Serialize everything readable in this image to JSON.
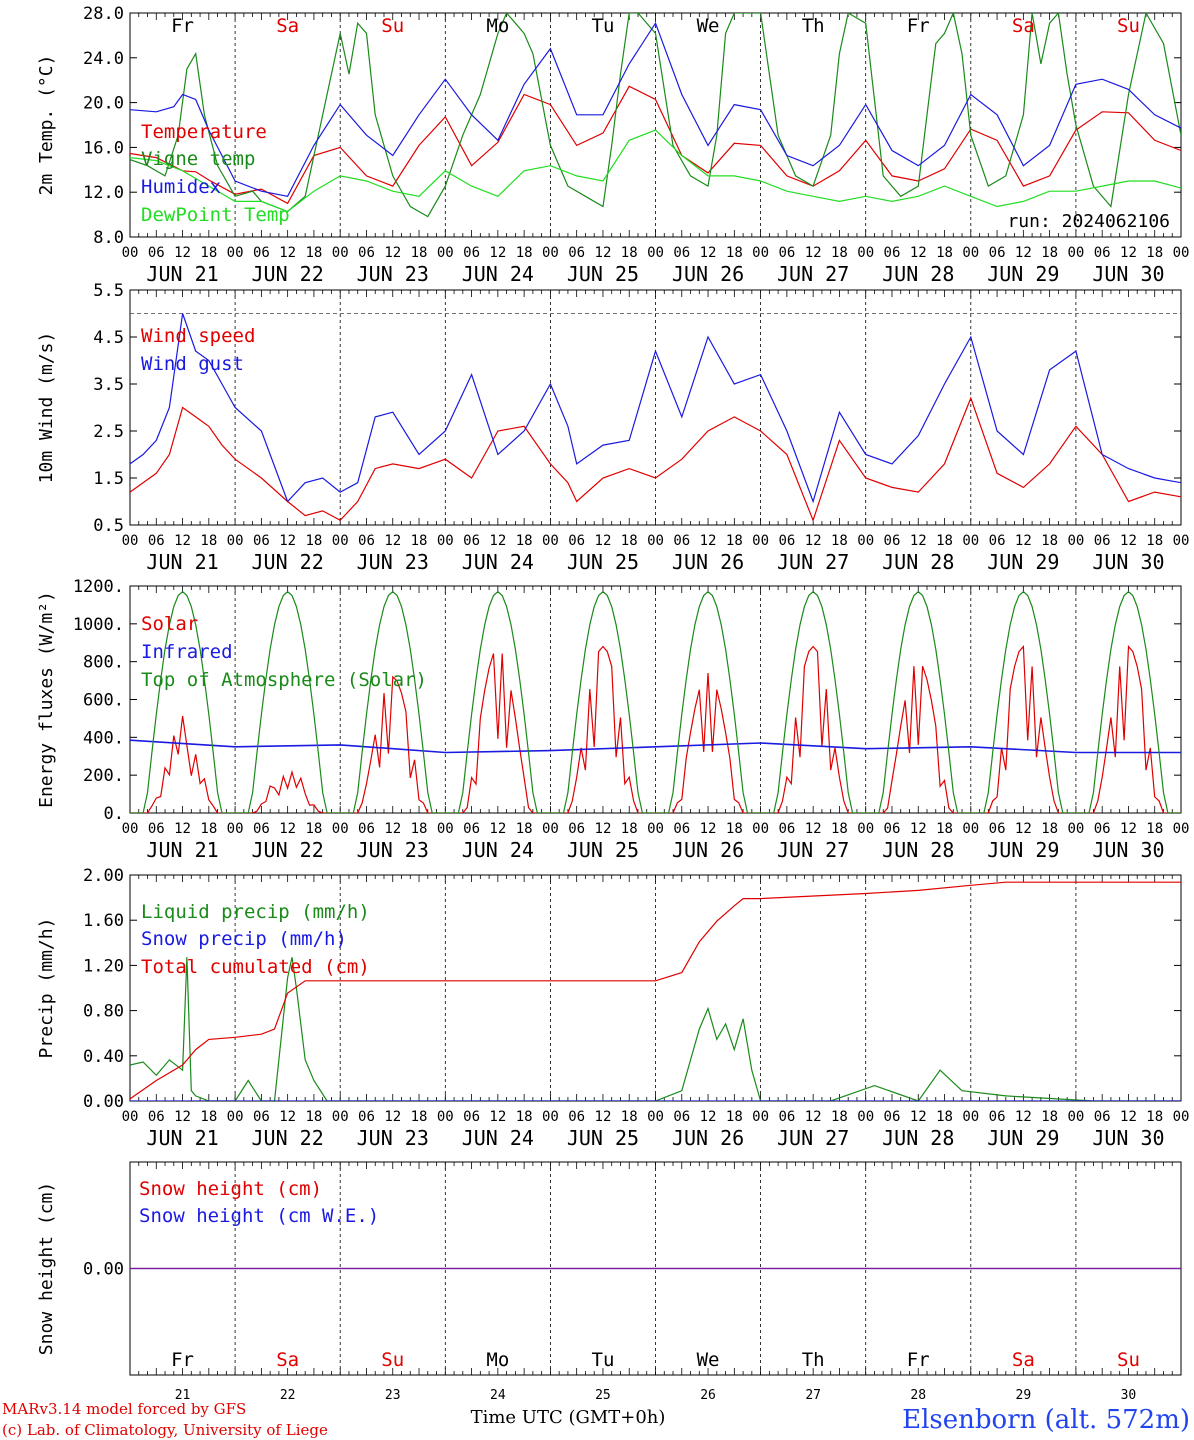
{
  "footer": {
    "credit_line1": "MARv3.14 model forced by GFS",
    "credit_line2": "(c) Lab. of Climatology, University of Liege",
    "time_label": "Time UTC (GMT+0h)",
    "station": "Elsenborn (alt. 572m)"
  },
  "colors": {
    "red": "#e00000",
    "green": "#1a8a1a",
    "blue": "#1a1ae0",
    "lightgreen": "#22dd22",
    "purple": "#7a1aa0",
    "weekend": "#e00000",
    "weekday": "#000000"
  },
  "axis": {
    "hour_ticks": [
      "00",
      "06",
      "12",
      "18"
    ],
    "end_tick": "00",
    "dates": [
      "JUN 21",
      "JUN 22",
      "JUN 23",
      "JUN 24",
      "JUN 25",
      "JUN 26",
      "JUN 27",
      "JUN 28",
      "JUN 29",
      "JUN 30"
    ],
    "weekdays": [
      "Fr",
      "Sa",
      "Su",
      "Mo",
      "Tu",
      "We",
      "Th",
      "Fr",
      "Sa",
      "Su"
    ],
    "weekend_flags": [
      false,
      true,
      true,
      false,
      false,
      false,
      false,
      false,
      true,
      true
    ],
    "day_numbers": [
      "21",
      "22",
      "23",
      "24",
      "25",
      "26",
      "27",
      "28",
      "29",
      "30"
    ]
  },
  "chart_data": [
    {
      "type": "line",
      "id": "temp",
      "ylabel": "2m Temp. (°C)",
      "ylim": [
        8,
        30
      ],
      "yticks": [
        "8.0",
        "12.0",
        "16.0",
        "20.0",
        "24.0",
        "28.0"
      ],
      "run_label": "run: 2024062106",
      "series": [
        {
          "name": "Temperature",
          "color": "#e00000",
          "x": [
            0,
            6,
            12,
            15,
            18,
            24,
            30,
            36,
            42,
            48,
            54,
            60,
            66,
            72,
            78,
            84,
            90,
            96,
            102,
            108,
            114,
            120,
            126,
            132,
            138,
            144,
            150,
            156,
            162,
            168,
            174,
            180,
            186,
            192,
            198,
            204,
            210,
            216,
            222,
            228,
            234,
            240
          ],
          "y": [
            16.2,
            15.8,
            14.5,
            14.4,
            13.6,
            12.2,
            12.7,
            11.3,
            16.0,
            16.8,
            14.0,
            13.0,
            17.0,
            19.8,
            15.0,
            17.3,
            22.0,
            21.0,
            17.0,
            18.2,
            22.8,
            21.5,
            16.0,
            14.3,
            17.2,
            17.0,
            14.0,
            13.0,
            14.5,
            17.5,
            14.0,
            13.5,
            14.7,
            18.6,
            17.5,
            13.0,
            14.0,
            18.5,
            20.3,
            20.2,
            17.5,
            16.5
          ]
        },
        {
          "name": "Vigne temp",
          "color": "#1a8a1a",
          "x": [
            0,
            4,
            8,
            11,
            13,
            15,
            17,
            20,
            24,
            28,
            30,
            36,
            40,
            44,
            48,
            50,
            52,
            54,
            56,
            60,
            64,
            68,
            72,
            76,
            80,
            84,
            86,
            88,
            90,
            92,
            96,
            100,
            104,
            108,
            110,
            112,
            114,
            116,
            120,
            124,
            128,
            132,
            134,
            136,
            138,
            140,
            144,
            148,
            152,
            156,
            160,
            162,
            164,
            168,
            172,
            176,
            180,
            182,
            184,
            186,
            188,
            190,
            192,
            196,
            200,
            204,
            206,
            208,
            210,
            212,
            214,
            216,
            220,
            224,
            228,
            232,
            236,
            240
          ],
          "y": [
            15.6,
            15.0,
            14.0,
            18.0,
            24.5,
            26.0,
            20.0,
            15.0,
            12.0,
            12.5,
            11.5,
            10.5,
            12.0,
            20.0,
            28.0,
            24.0,
            29.0,
            28.0,
            20.0,
            14.0,
            11.0,
            10.0,
            13.0,
            18.0,
            22.0,
            28.0,
            30.0,
            29.0,
            28.0,
            26.0,
            17.0,
            13.0,
            12.0,
            11.0,
            17.0,
            24.0,
            30.0,
            30.0,
            28.0,
            17.0,
            14.0,
            13.0,
            18.0,
            28.0,
            30.0,
            30.0,
            30.0,
            18.0,
            14.0,
            13.0,
            18.0,
            26.0,
            30.0,
            29.0,
            14.0,
            12.0,
            13.0,
            20.0,
            27.0,
            28.0,
            30.0,
            26.0,
            18.0,
            13.0,
            14.0,
            20.0,
            30.0,
            25.0,
            29.0,
            30.0,
            24.0,
            19.0,
            13.0,
            11.0,
            22.0,
            30.0,
            27.0,
            18.0
          ]
        },
        {
          "name": "Humidex",
          "color": "#1a1ae0",
          "x": [
            0,
            6,
            10,
            12,
            15,
            18,
            24,
            30,
            36,
            42,
            48,
            54,
            60,
            66,
            72,
            78,
            84,
            90,
            96,
            102,
            108,
            114,
            120,
            126,
            132,
            138,
            144,
            150,
            156,
            162,
            168,
            174,
            180,
            186,
            192,
            198,
            204,
            210,
            216,
            222,
            228,
            234,
            240
          ],
          "y": [
            20.5,
            20.3,
            20.8,
            22.0,
            21.5,
            18.5,
            13.5,
            12.5,
            12.0,
            17.0,
            21.0,
            18.0,
            16.0,
            20.0,
            23.5,
            20.0,
            17.5,
            23.0,
            26.5,
            20.0,
            20.0,
            25.0,
            29.0,
            22.0,
            17.0,
            21.0,
            20.5,
            16.0,
            15.0,
            17.0,
            21.0,
            16.5,
            15.0,
            17.0,
            22.0,
            20.0,
            15.0,
            17.0,
            23.0,
            23.5,
            22.5,
            20.0,
            18.7
          ]
        },
        {
          "name": "DewPoint Temp",
          "color": "#22dd22",
          "x": [
            0,
            6,
            12,
            18,
            24,
            30,
            36,
            42,
            48,
            54,
            60,
            66,
            72,
            78,
            84,
            90,
            96,
            102,
            108,
            114,
            120,
            126,
            132,
            138,
            144,
            150,
            156,
            162,
            168,
            174,
            180,
            186,
            192,
            198,
            204,
            210,
            216,
            222,
            228,
            234,
            240
          ],
          "y": [
            15.8,
            15.5,
            14.5,
            13.0,
            11.5,
            11.5,
            10.5,
            12.5,
            14.0,
            13.5,
            12.5,
            12.0,
            14.5,
            13.0,
            12.0,
            14.5,
            15.0,
            14.0,
            13.5,
            17.5,
            18.5,
            16.0,
            14.0,
            14.0,
            13.5,
            12.5,
            12.0,
            11.5,
            12.0,
            11.5,
            12.0,
            13.0,
            12.0,
            11.0,
            11.5,
            12.5,
            12.5,
            13.0,
            13.5,
            13.5,
            12.8
          ]
        }
      ]
    },
    {
      "type": "line",
      "id": "wind",
      "ylabel": "10m Wind (m/s)",
      "ylim": [
        0.5,
        5.5
      ],
      "yticks": [
        "0.5",
        "1.5",
        "2.5",
        "3.5",
        "4.5",
        "5.5"
      ],
      "reference_line": 5.0,
      "series": [
        {
          "name": "Wind speed",
          "color": "#e00000",
          "x": [
            0,
            3,
            6,
            9,
            12,
            15,
            18,
            21,
            24,
            30,
            36,
            40,
            44,
            48,
            52,
            56,
            60,
            66,
            72,
            78,
            84,
            90,
            96,
            100,
            102,
            108,
            114,
            120,
            126,
            132,
            138,
            144,
            150,
            156,
            162,
            168,
            174,
            180,
            186,
            192,
            198,
            204,
            210,
            216,
            222,
            228,
            234,
            240
          ],
          "y": [
            1.2,
            1.4,
            1.6,
            2.0,
            3.0,
            2.8,
            2.6,
            2.2,
            1.9,
            1.5,
            1.0,
            0.7,
            0.8,
            0.6,
            1.0,
            1.7,
            1.8,
            1.7,
            1.9,
            1.5,
            2.5,
            2.6,
            1.8,
            1.4,
            1.0,
            1.5,
            1.7,
            1.5,
            1.9,
            2.5,
            2.8,
            2.5,
            2.0,
            0.6,
            2.3,
            1.5,
            1.3,
            1.2,
            1.8,
            3.2,
            1.6,
            1.3,
            1.8,
            2.6,
            2.0,
            1.0,
            1.2,
            1.1
          ]
        },
        {
          "name": "Wind gust",
          "color": "#1a1ae0",
          "x": [
            0,
            3,
            6,
            9,
            12,
            15,
            18,
            21,
            24,
            30,
            36,
            40,
            44,
            48,
            52,
            56,
            60,
            66,
            72,
            78,
            84,
            90,
            96,
            100,
            102,
            108,
            114,
            120,
            126,
            132,
            138,
            144,
            150,
            156,
            162,
            168,
            174,
            180,
            186,
            192,
            198,
            204,
            210,
            216,
            222,
            228,
            234,
            240
          ],
          "y": [
            1.8,
            2.0,
            2.3,
            3.0,
            5.0,
            4.2,
            4.0,
            3.5,
            3.0,
            2.5,
            1.0,
            1.4,
            1.5,
            1.2,
            1.4,
            2.8,
            2.9,
            2.0,
            2.5,
            3.7,
            2.0,
            2.5,
            3.5,
            2.6,
            1.8,
            2.2,
            2.3,
            4.2,
            2.8,
            4.5,
            3.5,
            3.7,
            2.5,
            1.0,
            2.9,
            2.0,
            1.8,
            2.4,
            3.5,
            4.5,
            2.5,
            2.0,
            3.8,
            4.2,
            2.0,
            1.7,
            1.5,
            1.4
          ]
        }
      ]
    },
    {
      "type": "line",
      "id": "energy",
      "ylabel": "Energy fluxes (W/m²)",
      "ylim": [
        0,
        1200
      ],
      "yticks": [
        "0.",
        "200.",
        "400.",
        "600.",
        "800.",
        "1000.",
        "1200."
      ],
      "series": [
        {
          "name": "Solar",
          "color": "#e00000",
          "peaks": [
            560,
            270,
            720,
            870,
            880,
            740,
            880,
            800,
            880,
            880
          ]
        },
        {
          "name": "Infrared",
          "color": "#1a1ae0",
          "x": [
            0,
            24,
            48,
            72,
            96,
            120,
            144,
            168,
            192,
            216,
            240
          ],
          "y": [
            385,
            350,
            360,
            320,
            330,
            350,
            370,
            340,
            350,
            320,
            320
          ]
        },
        {
          "name": "Top of Atmosphere (Solar)",
          "color": "#1a8a1a",
          "peak": 1170
        }
      ]
    },
    {
      "type": "line",
      "id": "precip",
      "ylabel": "Precip (mm/h)",
      "ylim": [
        0,
        2.2
      ],
      "yticks": [
        "0.00",
        "0.40",
        "0.80",
        "1.20",
        "1.60",
        "2.00"
      ],
      "series": [
        {
          "name": "Liquid precip (mm/h)",
          "color": "#1a8a1a",
          "x": [
            0,
            3,
            6,
            9,
            12,
            13,
            14,
            15,
            18,
            24,
            27,
            30,
            33,
            36,
            37,
            38,
            40,
            42,
            45,
            120,
            126,
            130,
            132,
            134,
            136,
            138,
            140,
            142,
            144,
            150,
            160,
            170,
            180,
            185,
            190,
            200,
            220,
            240
          ],
          "y": [
            0.35,
            0.38,
            0.25,
            0.4,
            0.3,
            1.4,
            0.1,
            0.05,
            0.0,
            0.0,
            0.2,
            0.0,
            0.0,
            1.2,
            1.4,
            1.1,
            0.4,
            0.2,
            0.0,
            0.0,
            0.1,
            0.7,
            0.9,
            0.6,
            0.75,
            0.5,
            0.8,
            0.3,
            0.0,
            0.0,
            0.0,
            0.15,
            0.0,
            0.3,
            0.1,
            0.05,
            0.0,
            0.0
          ]
        },
        {
          "name": "Snow precip (mm/h)",
          "color": "#1a1ae0",
          "x": [
            0,
            240
          ],
          "y": [
            0,
            0
          ]
        },
        {
          "name": "Total cumulated (cm)",
          "color": "#e00000",
          "x": [
            0,
            6,
            12,
            15,
            18,
            24,
            30,
            33,
            36,
            40,
            42,
            48,
            72,
            96,
            120,
            126,
            130,
            134,
            138,
            140,
            144,
            168,
            180,
            192,
            200,
            240
          ],
          "y": [
            0.02,
            0.2,
            0.35,
            0.5,
            0.6,
            0.62,
            0.65,
            0.7,
            1.05,
            1.17,
            1.17,
            1.17,
            1.17,
            1.17,
            1.17,
            1.25,
            1.55,
            1.75,
            1.9,
            1.97,
            1.97,
            2.02,
            2.05,
            2.1,
            2.13,
            2.13
          ]
        }
      ]
    },
    {
      "type": "line",
      "id": "snow",
      "ylabel": "Snow height (cm)",
      "ylim": [
        -1,
        1
      ],
      "yticks": [
        "0.00"
      ],
      "series": [
        {
          "name": "Snow height (cm)",
          "color": "#e00000",
          "x": [
            0,
            240
          ],
          "y": [
            0,
            0
          ]
        },
        {
          "name": "Snow height (cm W.E.)",
          "color": "#1a1ae0",
          "x": [
            0,
            240
          ],
          "y": [
            0,
            0
          ]
        }
      ]
    }
  ]
}
